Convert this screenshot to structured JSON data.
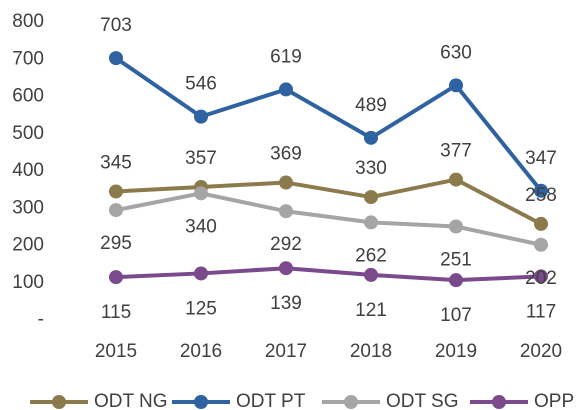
{
  "chart_data": {
    "type": "line",
    "categories": [
      "2015",
      "2016",
      "2017",
      "2018",
      "2019",
      "2020"
    ],
    "series": [
      {
        "name": "ODT NG",
        "color": "#8b7b4c",
        "values": [
          345,
          357,
          369,
          330,
          377,
          258
        ]
      },
      {
        "name": "ODT PT",
        "color": "#2e62a0",
        "values": [
          703,
          546,
          619,
          489,
          630,
          347
        ]
      },
      {
        "name": "ODT SG",
        "color": "#a5a5a5",
        "values": [
          295,
          340,
          292,
          262,
          251,
          202
        ]
      },
      {
        "name": "OPP",
        "color": "#7b4a8c",
        "values": [
          115,
          125,
          139,
          121,
          107,
          117
        ]
      }
    ],
    "ylim": [
      0,
      800
    ],
    "yticks": [
      {
        "value": 0,
        "label": "-"
      },
      100,
      200,
      300,
      400,
      500,
      600,
      700,
      800
    ],
    "grid": false,
    "legend": "bottom"
  }
}
